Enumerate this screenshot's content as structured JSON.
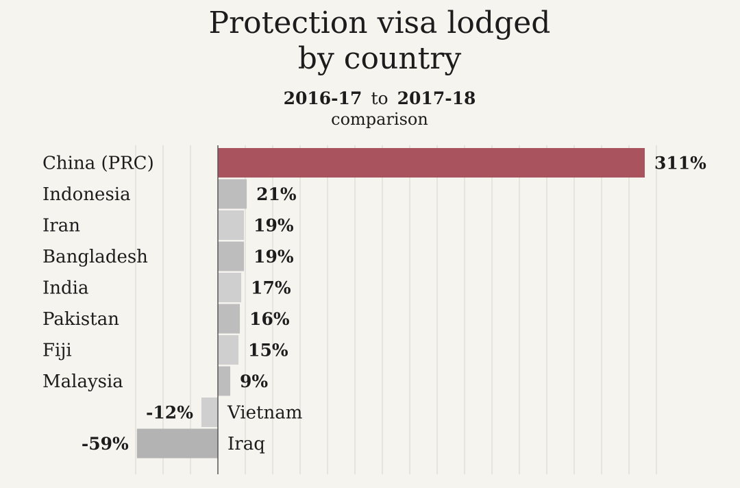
{
  "chart_data": {
    "type": "bar",
    "orientation": "horizontal",
    "title": "Protection visa lodged by country",
    "title_lines": [
      "Protection visa lodged",
      "by country"
    ],
    "subtitle": {
      "from": "2016-17",
      "joiner": "to",
      "to": "2017-18",
      "line2": "comparison"
    },
    "unit": "%",
    "categories": [
      "China (PRC)",
      "Indonesia",
      "Iran",
      "Bangladesh",
      "India",
      "Pakistan",
      "Fiji",
      "Malaysia",
      "Vietnam",
      "Iraq"
    ],
    "values": [
      311,
      21,
      19,
      19,
      17,
      16,
      15,
      9,
      -12,
      -59
    ],
    "value_labels": [
      "311%",
      "21%",
      "19%",
      "19%",
      "17%",
      "16%",
      "15%",
      "9%",
      "-12%",
      "-59%"
    ],
    "bar_colors": [
      "#a9535f",
      "#bdbdbd",
      "#cfcfcf",
      "#bdbdbd",
      "#cfcfcf",
      "#bdbdbd",
      "#cfcfcf",
      "#bdbdbd",
      "#cfcfcf",
      "#b3b3b3"
    ],
    "xlim": [
      -60,
      320
    ],
    "gridlines": true,
    "legend": "none"
  }
}
